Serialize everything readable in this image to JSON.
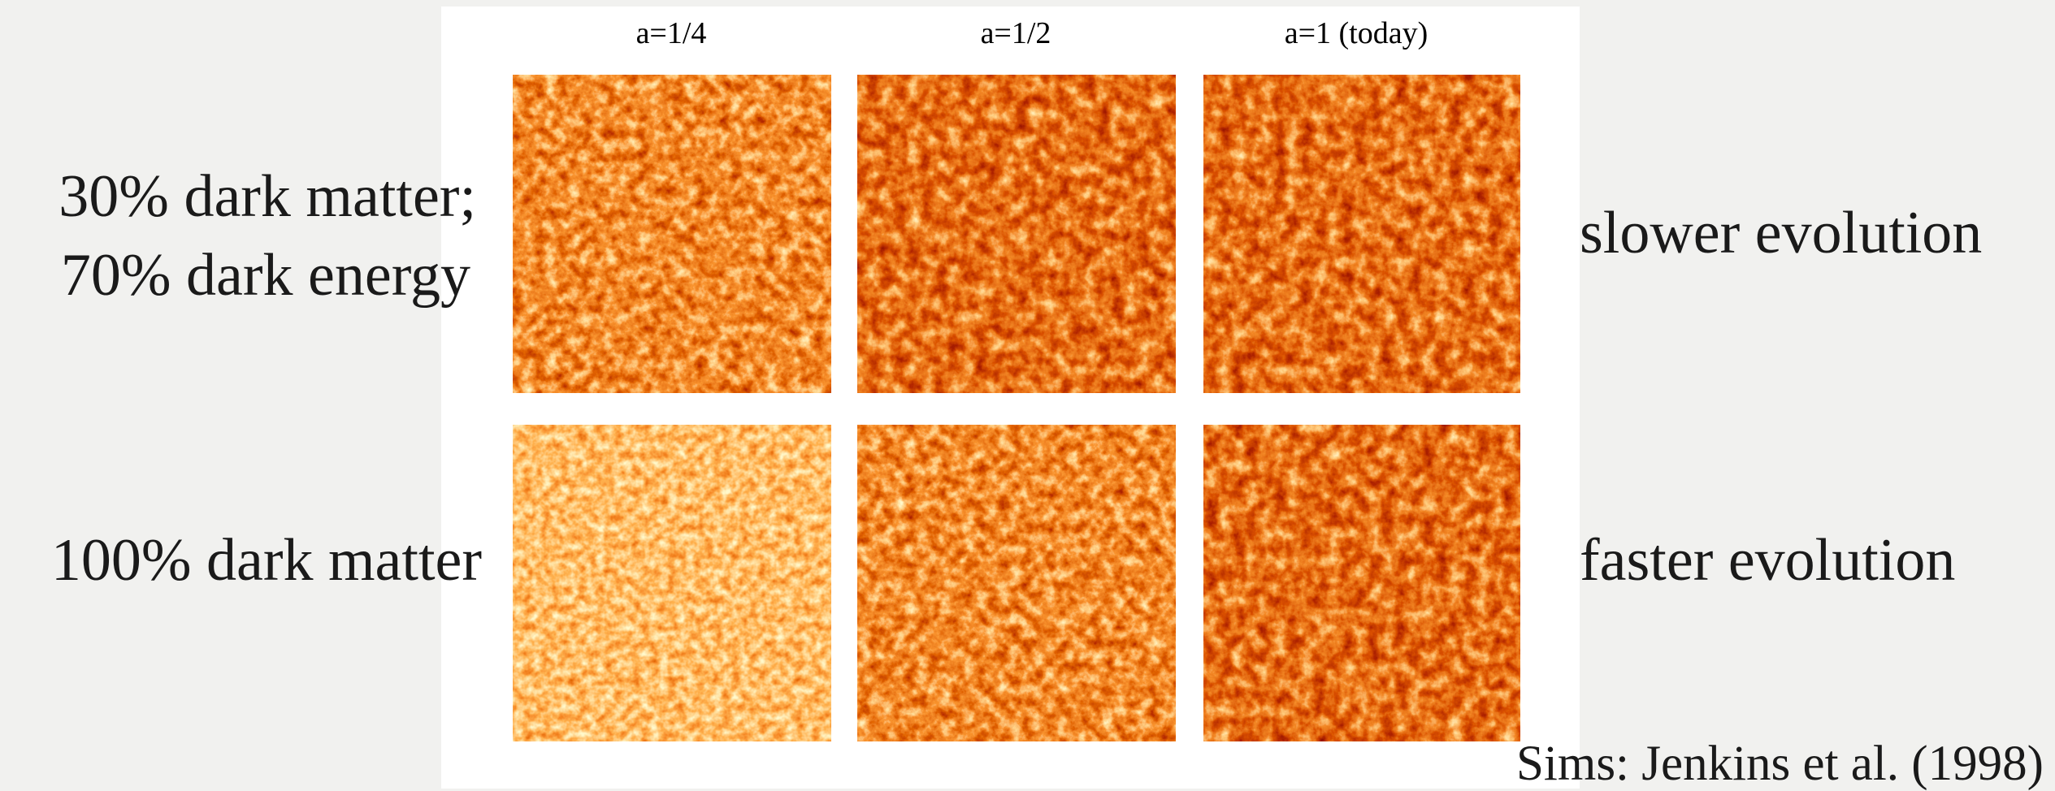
{
  "column_headers": [
    "a=1/4",
    "a=1/2",
    "a=1 (today)"
  ],
  "rows": [
    {
      "left_label": [
        "30% dark matter;",
        "70% dark energy"
      ],
      "right_label": "slower evolution"
    },
    {
      "left_label": [
        "100% dark matter"
      ],
      "right_label": "faster evolution"
    }
  ],
  "citation": "Sims: Jenkins et al. (1998)"
}
